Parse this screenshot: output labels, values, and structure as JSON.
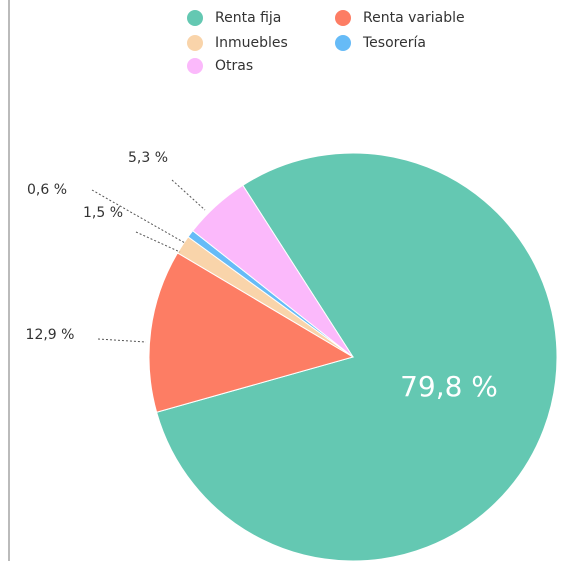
{
  "chart_data": {
    "type": "pie",
    "categories": [
      "Renta fija",
      "Renta variable",
      "Inmuebles",
      "Tesorería",
      "Otras"
    ],
    "values": [
      79.8,
      12.9,
      1.5,
      0.6,
      5.3
    ],
    "value_labels": [
      "79,8 %",
      "12,9 %",
      "1,5 %",
      "0,6 %",
      "5,3 %"
    ],
    "colors": [
      "#64c8b2",
      "#fd7d64",
      "#f9d4aa",
      "#66bbf7",
      "#fbb9fb"
    ],
    "legend": "top"
  }
}
